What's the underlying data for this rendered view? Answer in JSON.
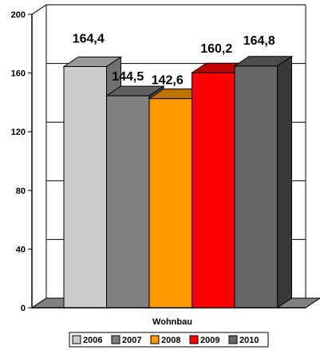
{
  "chart_data": {
    "type": "bar",
    "categories": [
      "Wohnbau"
    ],
    "series": [
      {
        "name": "2006",
        "value": 164.4,
        "label": "164,4",
        "color": "#cccccc"
      },
      {
        "name": "2007",
        "value": 144.5,
        "label": "144,5",
        "color": "#808080"
      },
      {
        "name": "2008",
        "value": 142.6,
        "label": "142,6",
        "color": "#ff9900"
      },
      {
        "name": "2009",
        "value": 160.2,
        "label": "160,2",
        "color": "#ff0000"
      },
      {
        "name": "2010",
        "value": 164.8,
        "label": "164,8",
        "color": "#666666"
      }
    ],
    "ylim": [
      0,
      200
    ],
    "yticks": [
      "0",
      "40",
      "80",
      "120",
      "160",
      "200"
    ],
    "grid": true,
    "legend": "bottom"
  }
}
